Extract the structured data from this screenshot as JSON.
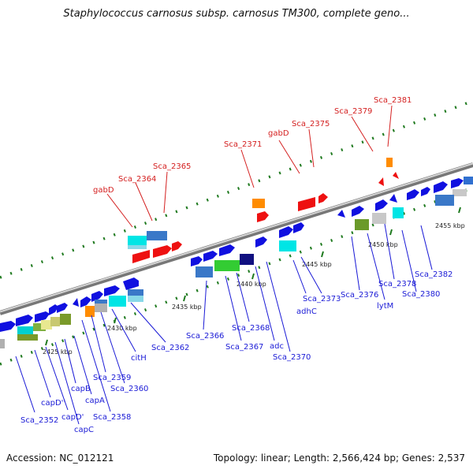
{
  "title": "Staphylococcus carnosus subsp. carnosus TM300, complete geno...",
  "footer": {
    "accession": "Accession: NC_012121",
    "stats": "Topology: linear; Length: 2,566,424 bp; Genes: 2,537"
  },
  "colors": {
    "forward_gene": "#1010e0",
    "reverse_gene": "#ee1111",
    "label_blue": "#1a1ad6",
    "label_red": "#d42020",
    "backbone": "#8a8a8a",
    "tick": "#1f7a1f"
  },
  "ruler_labels": [
    "2425 kbp",
    "2430 kbp",
    "2435 kbp",
    "2440 kbp",
    "2445 kbp",
    "2450 kbp",
    "2455 kbp"
  ],
  "red_labels": [
    "gabD",
    "Sca_2364",
    "Sca_2365",
    "Sca_2371",
    "gabD",
    "Sca_2375",
    "Sca_2379",
    "Sca_2381"
  ],
  "blue_labels": [
    "Sca_2352",
    "capD''",
    "capD'",
    "capC",
    "capB",
    "capA",
    "Sca_2358",
    "Sca_2359",
    "Sca_2360",
    "citH",
    "Sca_2362",
    "Sca_2366",
    "Sca_2367",
    "Sca_2368",
    "adc",
    "Sca_2370",
    "adhC",
    "Sca_2373",
    "Sca_2376",
    "lytM",
    "Sca_2378",
    "Sca_2380",
    "Sca_2382"
  ]
}
